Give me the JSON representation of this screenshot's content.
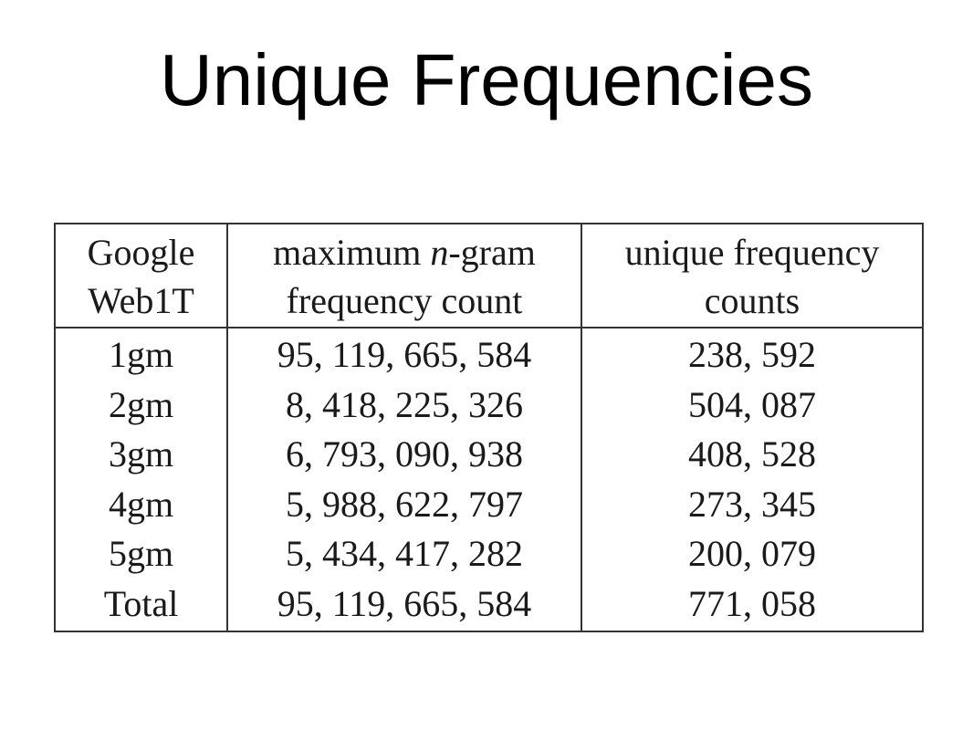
{
  "slide": {
    "title": "Unique Frequencies"
  },
  "table": {
    "headers": [
      {
        "line1": "Google",
        "line2": "Web1T"
      },
      {
        "line1": "maximum n-gram",
        "line2": "frequency count"
      },
      {
        "line1": "unique frequency",
        "line2": "counts"
      }
    ],
    "rows": [
      {
        "label": "1gm",
        "max_count": "95, 119, 665, 584",
        "unique_counts": "238, 592"
      },
      {
        "label": "2gm",
        "max_count": "8, 418, 225, 326",
        "unique_counts": "504, 087"
      },
      {
        "label": "3gm",
        "max_count": "6, 793, 090, 938",
        "unique_counts": "408, 528"
      },
      {
        "label": "4gm",
        "max_count": "5, 988, 622, 797",
        "unique_counts": "273, 345"
      },
      {
        "label": "5gm",
        "max_count": "5, 434, 417, 282",
        "unique_counts": "200, 079"
      },
      {
        "label": "Total",
        "max_count": "95, 119, 665, 584",
        "unique_counts": "771, 058"
      }
    ]
  }
}
